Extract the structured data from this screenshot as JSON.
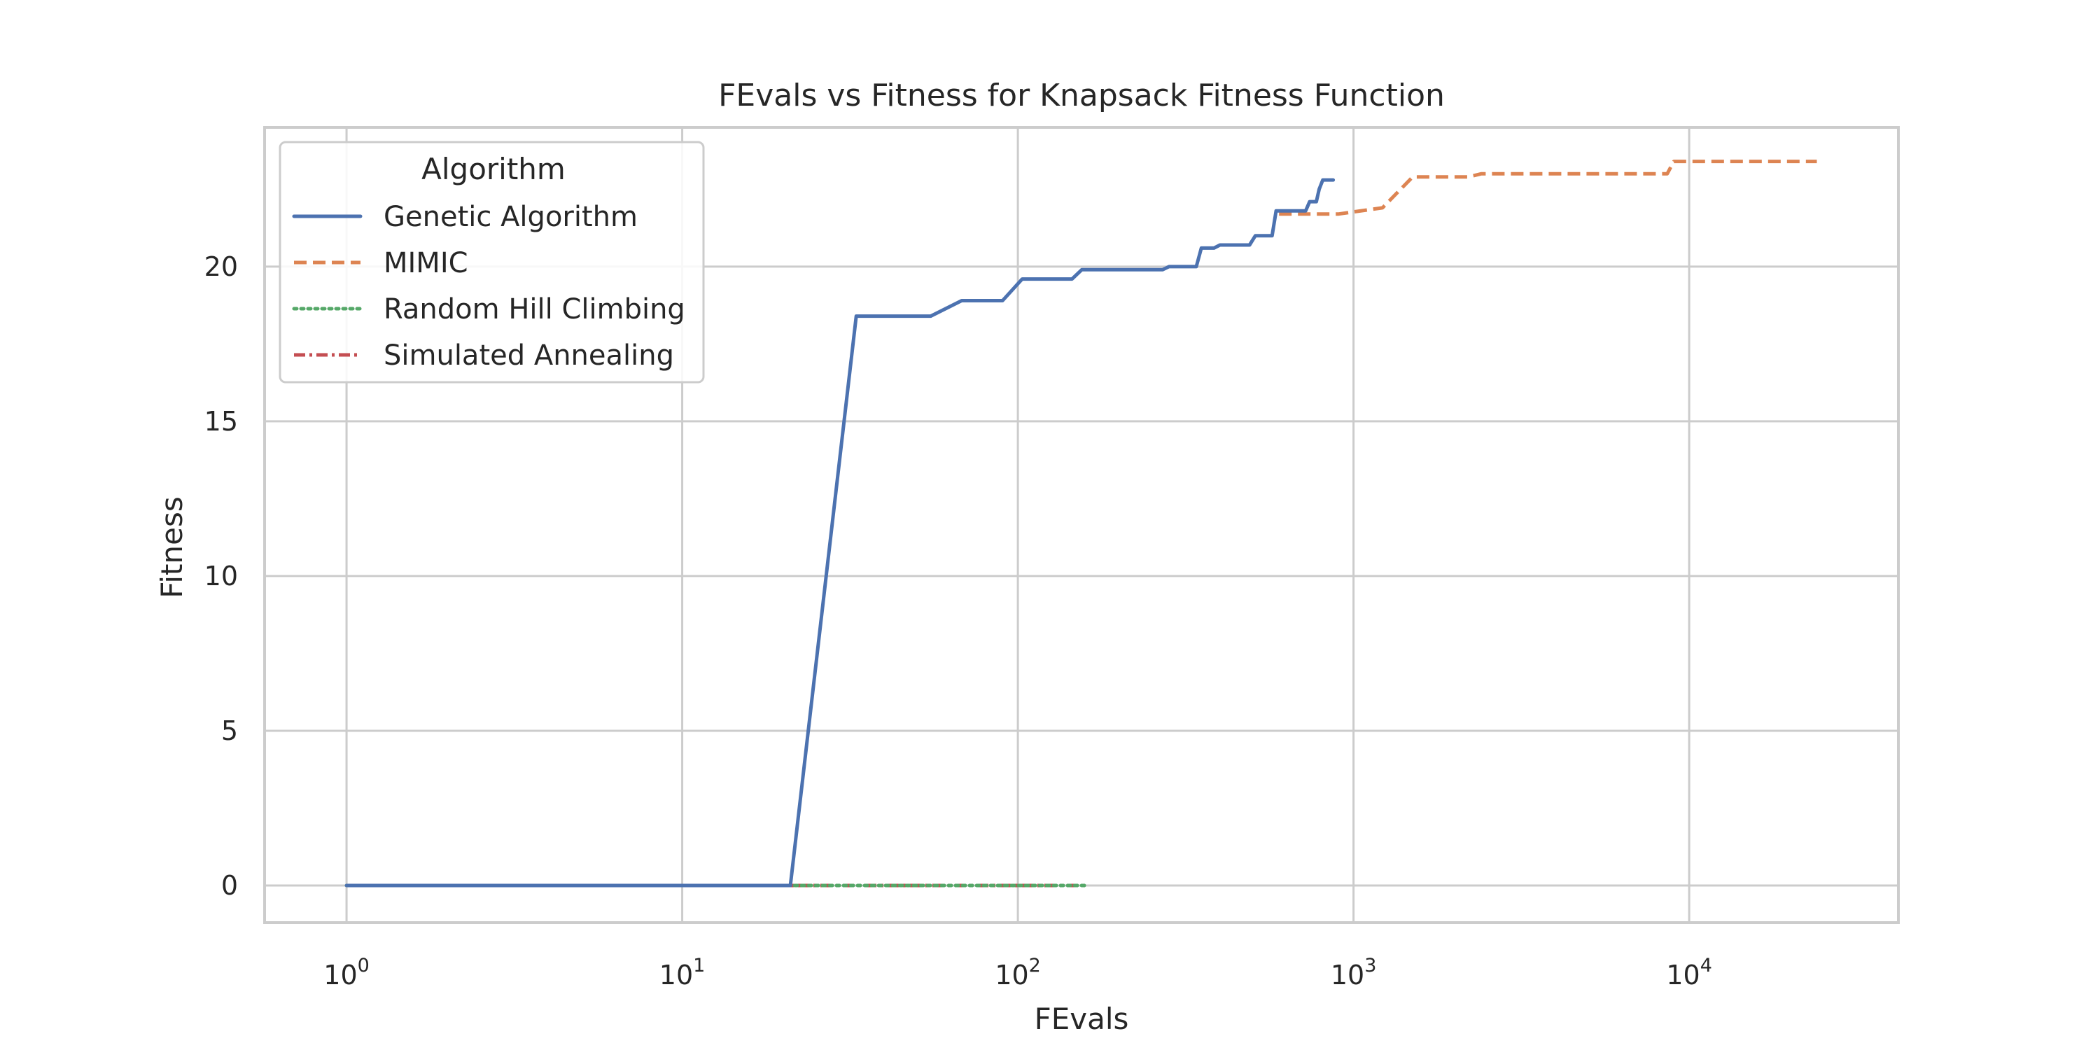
{
  "chart_data": {
    "type": "line",
    "title": "FEvals vs Fitness for Knapsack Fitness Function",
    "xlabel": "FEvals",
    "ylabel": "Fitness",
    "xscale": "log",
    "xlim": [
      0.57,
      42000
    ],
    "ylim": [
      -1.2,
      24.5
    ],
    "xticks": [
      1,
      10,
      100,
      1000,
      10000
    ],
    "xtick_labels": [
      {
        "base": "10",
        "exp": "0"
      },
      {
        "base": "10",
        "exp": "1"
      },
      {
        "base": "10",
        "exp": "2"
      },
      {
        "base": "10",
        "exp": "3"
      },
      {
        "base": "10",
        "exp": "4"
      }
    ],
    "yticks": [
      0,
      5,
      10,
      15,
      20
    ],
    "grid": true,
    "legend": {
      "title": "Algorithm",
      "position": "upper-left"
    },
    "series": [
      {
        "name": "Genetic Algorithm",
        "color": "#4c72b0",
        "dash": "solid",
        "x": [
          1,
          21,
          33,
          55,
          68,
          90,
          103,
          145,
          155,
          270,
          282,
          340,
          352,
          384,
          400,
          490,
          510,
          572,
          588,
          720,
          740,
          775,
          790,
          810,
          870
        ],
        "y": [
          0,
          0,
          18.4,
          18.4,
          18.9,
          18.9,
          19.6,
          19.6,
          19.9,
          19.9,
          20.0,
          20.0,
          20.6,
          20.6,
          20.7,
          20.7,
          21.0,
          21.0,
          21.8,
          21.8,
          22.1,
          22.1,
          22.5,
          22.8,
          22.8
        ]
      },
      {
        "name": "MIMIC",
        "color": "#dd8452",
        "dash": "dashed",
        "x": [
          600,
          900,
          1220,
          1500,
          2200,
          2400,
          8600,
          9000,
          24000
        ],
        "y": [
          21.7,
          21.7,
          21.9,
          22.9,
          22.9,
          23.0,
          23.0,
          23.4,
          23.4
        ]
      },
      {
        "name": "Random Hill Climbing",
        "color": "#55a868",
        "dash": "dotted",
        "x": [
          1,
          160
        ],
        "y": [
          0,
          0
        ]
      },
      {
        "name": "Simulated Annealing",
        "color": "#c44e52",
        "dash": "dashdot",
        "x": [
          3,
          160
        ],
        "y": [
          0,
          0
        ]
      }
    ]
  }
}
